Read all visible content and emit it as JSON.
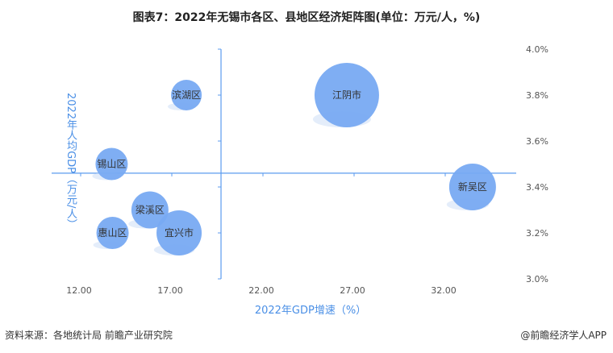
{
  "chart_data": {
    "type": "scatter",
    "subtype": "bubble",
    "title": "图表7：2022年无锡市各区、县地区经济矩阵图(单位：万元/人，%)",
    "xlabel": "2022年GDP增速（%）",
    "ylabel": "2022年人均GDP（万元/人）",
    "xlim": [
      12,
      35
    ],
    "ylim": [
      3.0,
      4.0
    ],
    "x_ticks": [
      "12.00",
      "17.00",
      "22.00",
      "27.00",
      "32.00"
    ],
    "y_ticks": [
      "4.0%",
      "3.8%",
      "3.6%",
      "3.4%",
      "3.2%",
      "3.0%"
    ],
    "y_tick_values": [
      4.0,
      3.8,
      3.6,
      3.4,
      3.2,
      3.0
    ],
    "x_tick_values": [
      12,
      17,
      22,
      27,
      32
    ],
    "cross_x": 19.7,
    "cross_y": 3.46,
    "grid": false,
    "bubble_color": "#78aaf2",
    "axis_color": "#5b9bef",
    "points": [
      {
        "label": "滨湖区",
        "x": 17.8,
        "y": 3.8,
        "size": 19
      },
      {
        "label": "江阴市",
        "x": 26.6,
        "y": 3.8,
        "size": 40
      },
      {
        "label": "锡山区",
        "x": 13.7,
        "y": 3.5,
        "size": 20
      },
      {
        "label": "新吴区",
        "x": 33.5,
        "y": 3.4,
        "size": 29
      },
      {
        "label": "梁溪区",
        "x": 15.8,
        "y": 3.3,
        "size": 23
      },
      {
        "label": "惠山区",
        "x": 13.75,
        "y": 3.2,
        "size": 20
      },
      {
        "label": "宜兴市",
        "x": 17.4,
        "y": 3.2,
        "size": 28
      }
    ]
  },
  "footer": {
    "source": "资料来源：各地统计局 前瞻产业研究院",
    "brand": "@前瞻经济学人APP"
  }
}
